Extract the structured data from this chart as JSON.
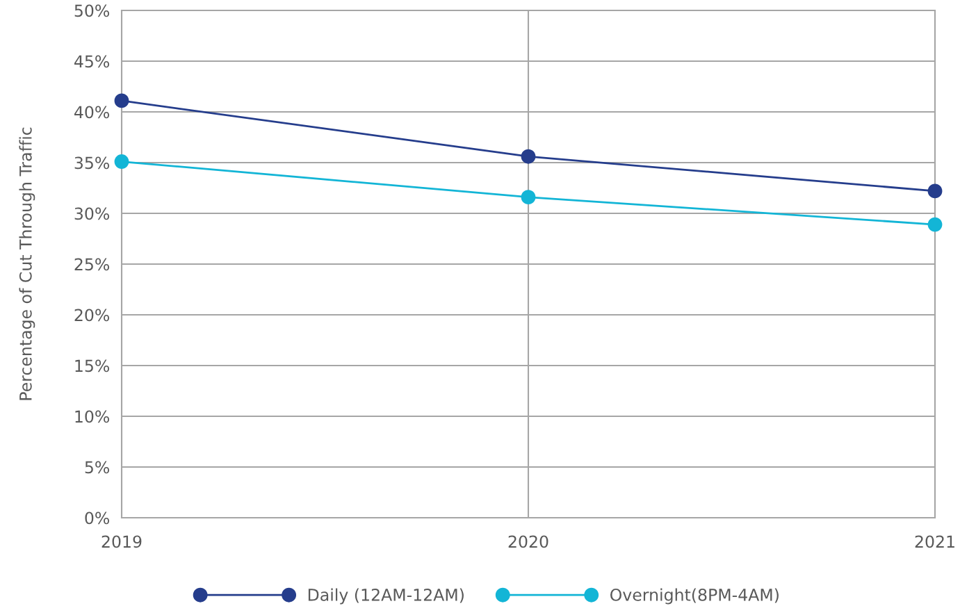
{
  "chart_data": {
    "type": "line",
    "ylabel": "Percentage of Cut Through Traffic",
    "x": [
      2019,
      2020,
      2021
    ],
    "xlim": [
      2019,
      2021
    ],
    "xticks": [
      2019,
      2020,
      2021
    ],
    "ylim": [
      0,
      50
    ],
    "yticks": [
      {
        "value": 0,
        "label": "0%"
      },
      {
        "value": 5,
        "label": "5%"
      },
      {
        "value": 10,
        "label": "10%"
      },
      {
        "value": 15,
        "label": "15%"
      },
      {
        "value": 20,
        "label": "20%"
      },
      {
        "value": 25,
        "label": "25%"
      },
      {
        "value": 30,
        "label": "30%"
      },
      {
        "value": 35,
        "label": "35%"
      },
      {
        "value": 40,
        "label": "40%"
      },
      {
        "value": 45,
        "label": "45%"
      },
      {
        "value": 50,
        "label": "50%"
      }
    ],
    "series": [
      {
        "name": "Daily (12AM-12AM)",
        "color": "#253d8c",
        "values": [
          41.1,
          35.6,
          32.2
        ]
      },
      {
        "name": "Overnight(8PM-4AM)",
        "color": "#13b5d6",
        "values": [
          35.1,
          31.6,
          28.9
        ]
      }
    ],
    "marker": "circle",
    "line_style": "solid",
    "grid": true,
    "legend": "bottom"
  }
}
